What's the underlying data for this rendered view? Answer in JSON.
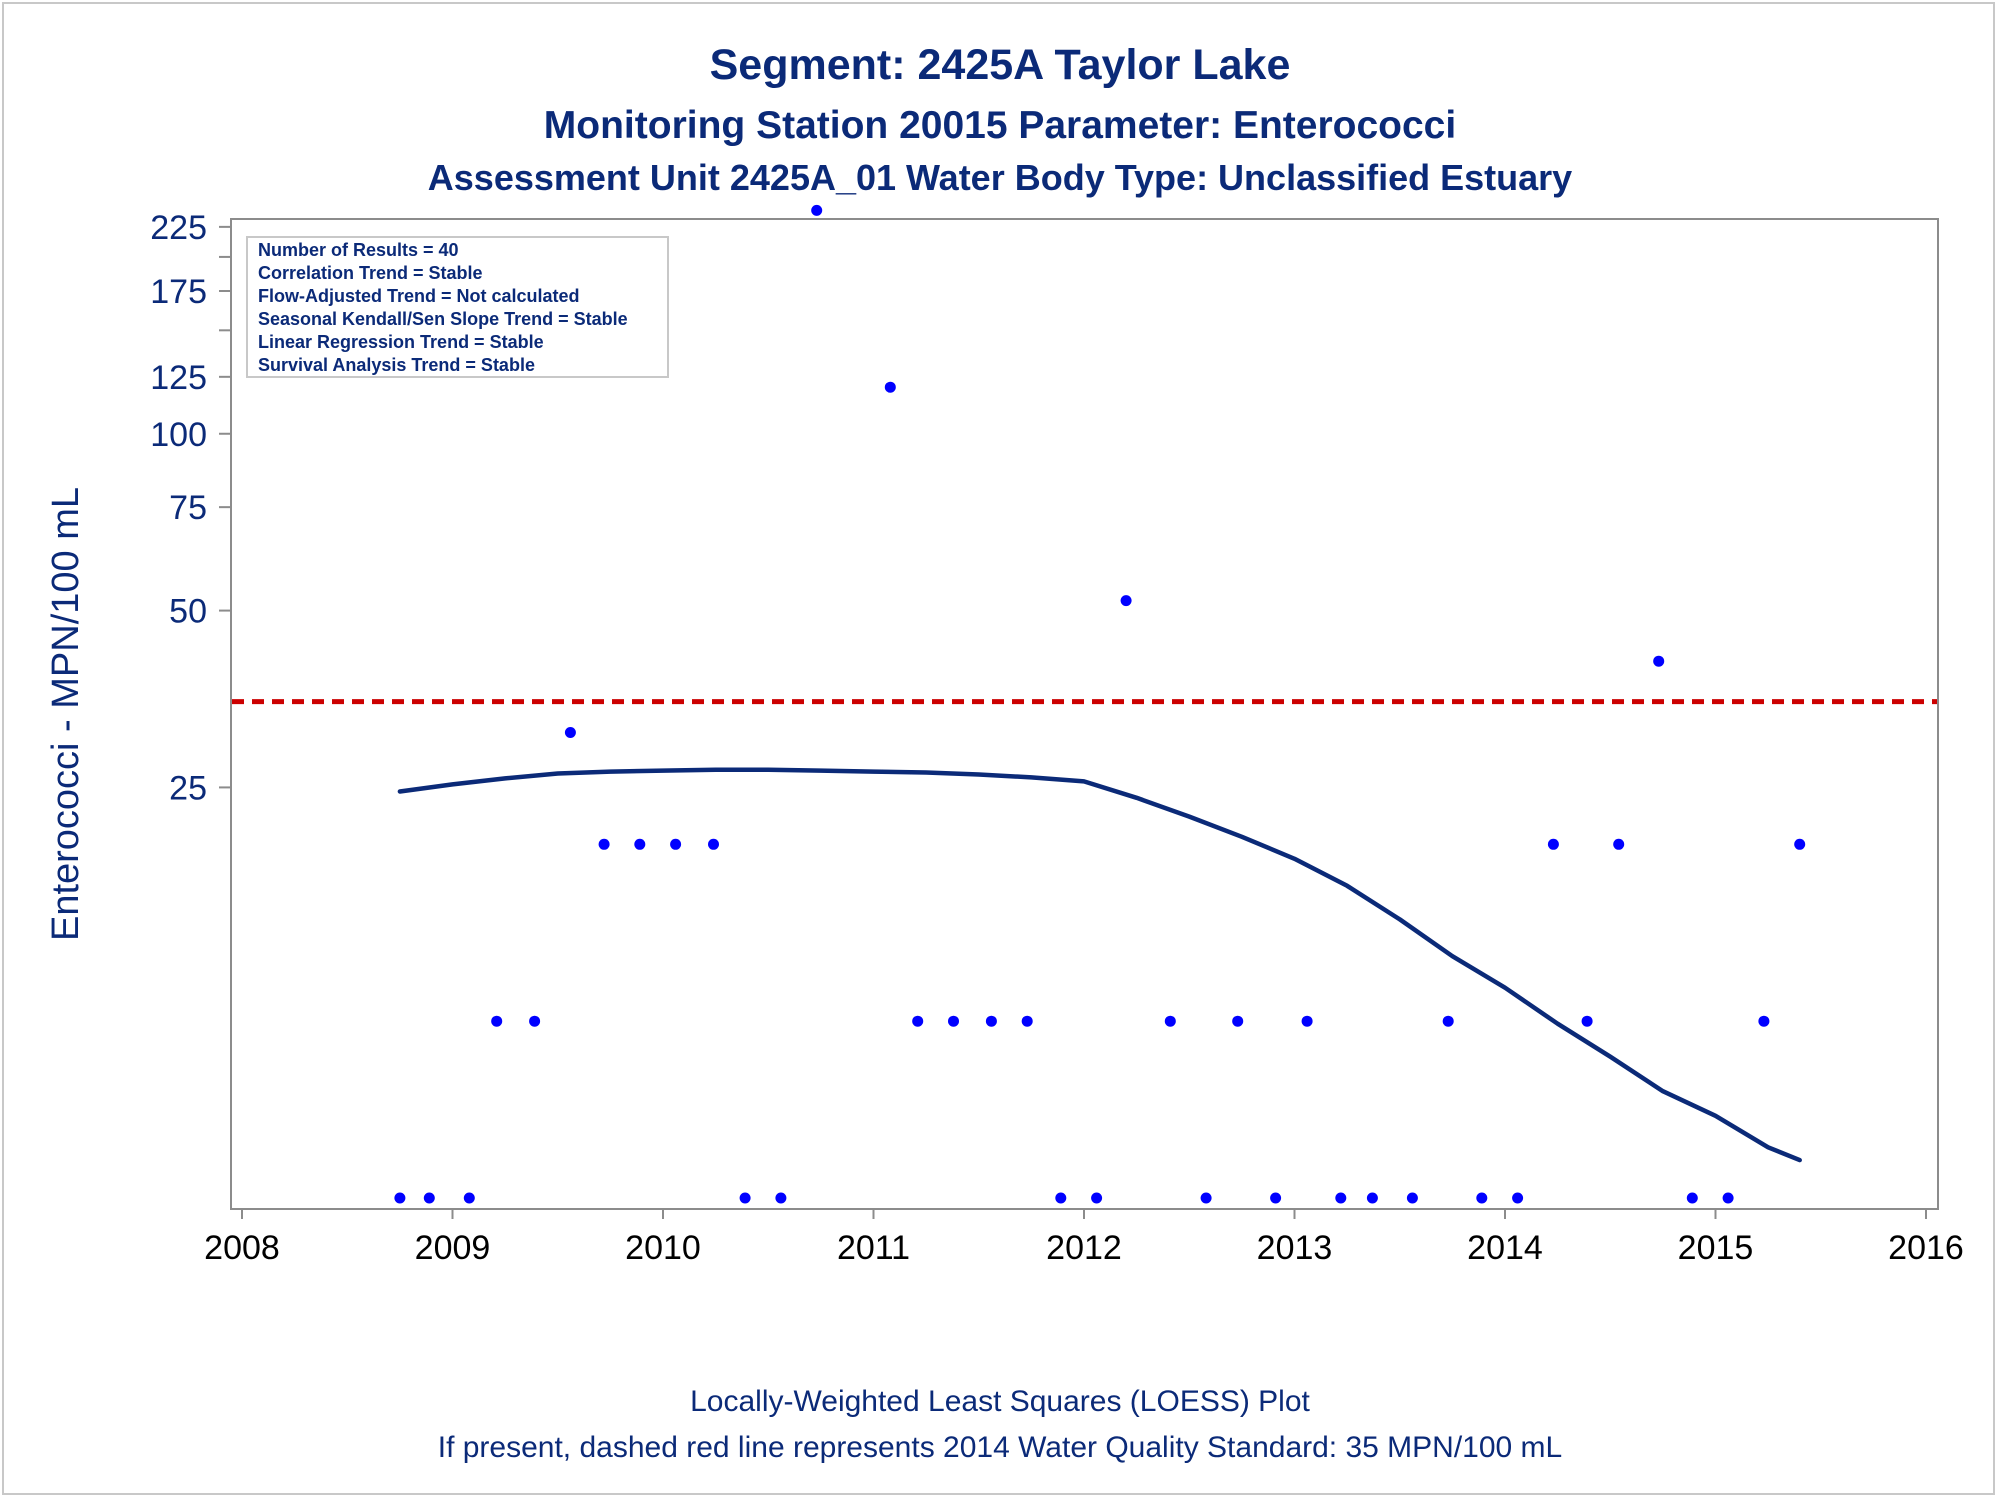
{
  "titles": {
    "line1": "Segment: 2425A  Taylor Lake",
    "line2": "Monitoring Station 20015 Parameter: Enterococci",
    "line3": "Assessment Unit 2425A_01   Water Body Type: Unclassified Estuary"
  },
  "stats_box": {
    "lines": [
      "Number of Results = 40",
      "Correlation Trend = Stable",
      "Flow-Adjusted Trend = Not calculated",
      "Seasonal Kendall/Sen Slope Trend = Stable",
      "Linear Regression Trend = Stable",
      "Survival Analysis Trend = Stable"
    ]
  },
  "footnotes": {
    "line1": "Locally-Weighted Least Squares (LOESS) Plot",
    "line2": "If present, dashed red line represents 2014 Water Quality Standard: 35 MPN/100 mL"
  },
  "colors": {
    "points": "#0000ff",
    "loess": "#0b2a78",
    "standard": "#cc0000",
    "text": "#0b2a78",
    "axis": "#8c8c8c"
  },
  "chart_data": {
    "type": "scatter",
    "ylabel": "Enterococci - MPN/100 mL",
    "xlabel": "",
    "y_scale": "log",
    "xlim": [
      2008,
      2016
    ],
    "ylim": [
      5,
      250
    ],
    "x_ticks": [
      2008,
      2009,
      2010,
      2011,
      2012,
      2013,
      2014,
      2015,
      2016
    ],
    "y_ticks": [
      25,
      50,
      75,
      100,
      125,
      175,
      225
    ],
    "y_minor_ticks": [
      150,
      200
    ],
    "grid": false,
    "standard_line": {
      "value": 35,
      "style": "dashed"
    },
    "series": [
      {
        "type": "scatter",
        "points": [
          {
            "x": 2008.75,
            "y": 5
          },
          {
            "x": 2008.89,
            "y": 5
          },
          {
            "x": 2009.08,
            "y": 5
          },
          {
            "x": 2009.21,
            "y": 10
          },
          {
            "x": 2009.39,
            "y": 10
          },
          {
            "x": 2009.56,
            "y": 31
          },
          {
            "x": 2009.72,
            "y": 20
          },
          {
            "x": 2009.89,
            "y": 20
          },
          {
            "x": 2010.06,
            "y": 20
          },
          {
            "x": 2010.24,
            "y": 20
          },
          {
            "x": 2010.39,
            "y": 5
          },
          {
            "x": 2010.56,
            "y": 5
          },
          {
            "x": 2010.73,
            "y": 240
          },
          {
            "x": 2011.08,
            "y": 120
          },
          {
            "x": 2011.21,
            "y": 10
          },
          {
            "x": 2011.38,
            "y": 10
          },
          {
            "x": 2011.56,
            "y": 10
          },
          {
            "x": 2011.73,
            "y": 10
          },
          {
            "x": 2011.89,
            "y": 5
          },
          {
            "x": 2012.06,
            "y": 5
          },
          {
            "x": 2012.2,
            "y": 52
          },
          {
            "x": 2012.41,
            "y": 10
          },
          {
            "x": 2012.58,
            "y": 5
          },
          {
            "x": 2012.73,
            "y": 10
          },
          {
            "x": 2012.91,
            "y": 5
          },
          {
            "x": 2013.06,
            "y": 10
          },
          {
            "x": 2013.22,
            "y": 5
          },
          {
            "x": 2013.37,
            "y": 5
          },
          {
            "x": 2013.56,
            "y": 5
          },
          {
            "x": 2013.73,
            "y": 10
          },
          {
            "x": 2013.89,
            "y": 5
          },
          {
            "x": 2014.06,
            "y": 5
          },
          {
            "x": 2014.23,
            "y": 20
          },
          {
            "x": 2014.39,
            "y": 10
          },
          {
            "x": 2014.54,
            "y": 20
          },
          {
            "x": 2014.73,
            "y": 41
          },
          {
            "x": 2014.89,
            "y": 5
          },
          {
            "x": 2015.06,
            "y": 5
          },
          {
            "x": 2015.23,
            "y": 10
          },
          {
            "x": 2015.4,
            "y": 20
          }
        ]
      },
      {
        "type": "line",
        "points": [
          {
            "x": 2008.75,
            "y": 24.6
          },
          {
            "x": 2009.0,
            "y": 25.3
          },
          {
            "x": 2009.25,
            "y": 25.9
          },
          {
            "x": 2009.5,
            "y": 26.4
          },
          {
            "x": 2009.75,
            "y": 26.6
          },
          {
            "x": 2010.0,
            "y": 26.7
          },
          {
            "x": 2010.25,
            "y": 26.8
          },
          {
            "x": 2010.5,
            "y": 26.8
          },
          {
            "x": 2010.75,
            "y": 26.7
          },
          {
            "x": 2011.0,
            "y": 26.6
          },
          {
            "x": 2011.25,
            "y": 26.5
          },
          {
            "x": 2011.5,
            "y": 26.3
          },
          {
            "x": 2011.75,
            "y": 26.0
          },
          {
            "x": 2012.0,
            "y": 25.6
          },
          {
            "x": 2012.25,
            "y": 24.0
          },
          {
            "x": 2012.5,
            "y": 22.3
          },
          {
            "x": 2012.75,
            "y": 20.6
          },
          {
            "x": 2013.0,
            "y": 18.9
          },
          {
            "x": 2013.25,
            "y": 17.0
          },
          {
            "x": 2013.5,
            "y": 14.9
          },
          {
            "x": 2013.75,
            "y": 12.9
          },
          {
            "x": 2014.0,
            "y": 11.4
          },
          {
            "x": 2014.25,
            "y": 9.9
          },
          {
            "x": 2014.5,
            "y": 8.7
          },
          {
            "x": 2014.75,
            "y": 7.6
          },
          {
            "x": 2015.0,
            "y": 6.9
          },
          {
            "x": 2015.25,
            "y": 6.1
          },
          {
            "x": 2015.4,
            "y": 5.8
          }
        ]
      }
    ]
  }
}
